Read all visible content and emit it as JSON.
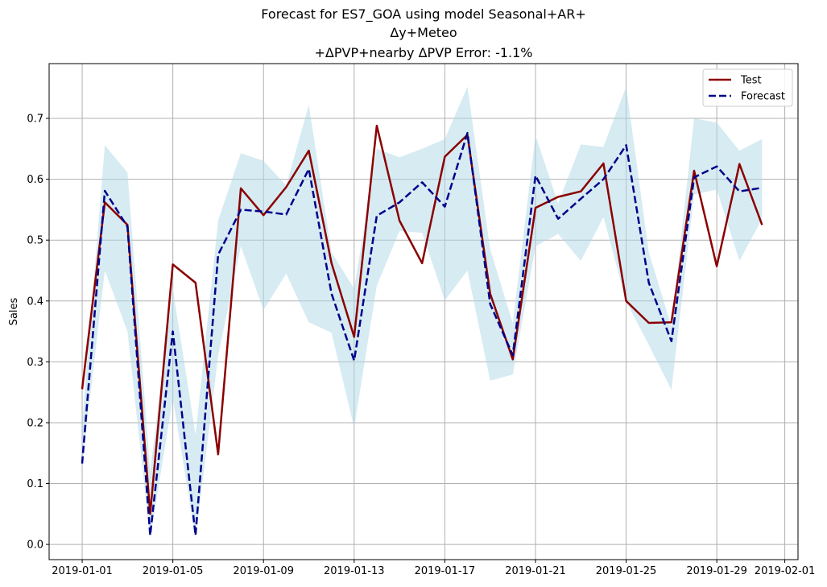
{
  "chart_data": {
    "type": "line",
    "title_lines": [
      "Forecast for ES7_GOA using model Seasonal+AR+",
      "Δy+Meteo",
      "+ΔPVP+nearby ΔPVP Error: -1.1%"
    ],
    "xlabel": "",
    "ylabel": "Sales",
    "x": [
      "2019-01-01",
      "2019-01-02",
      "2019-01-03",
      "2019-01-04",
      "2019-01-05",
      "2019-01-06",
      "2019-01-07",
      "2019-01-08",
      "2019-01-09",
      "2019-01-10",
      "2019-01-11",
      "2019-01-12",
      "2019-01-13",
      "2019-01-14",
      "2019-01-15",
      "2019-01-16",
      "2019-01-17",
      "2019-01-18",
      "2019-01-19",
      "2019-01-20",
      "2019-01-21",
      "2019-01-22",
      "2019-01-23",
      "2019-01-24",
      "2019-01-25",
      "2019-01-26",
      "2019-01-27",
      "2019-01-28",
      "2019-01-29",
      "2019-01-30",
      "2019-01-31"
    ],
    "x_ticks": [
      "2019-01-01",
      "2019-01-05",
      "2019-01-09",
      "2019-01-13",
      "2019-01-17",
      "2019-01-21",
      "2019-01-25",
      "2019-01-29",
      "2019-02-01"
    ],
    "y_ticks": [
      0.0,
      0.1,
      0.2,
      0.3,
      0.4,
      0.5,
      0.6,
      0.7
    ],
    "xlim": [
      "2018-12-30 13:00",
      "2019-02-01 14:00"
    ],
    "ylim": [
      -0.025,
      0.79
    ],
    "grid": true,
    "legend_position": "top-right",
    "series": [
      {
        "name": "Test",
        "color": "#8b0000",
        "style": "solid",
        "values": [
          0.255,
          0.562,
          0.525,
          0.05,
          0.46,
          0.43,
          0.148,
          0.585,
          0.541,
          0.587,
          0.647,
          0.462,
          0.341,
          0.688,
          0.532,
          0.462,
          0.637,
          0.673,
          0.412,
          0.304,
          0.553,
          0.571,
          0.58,
          0.626,
          0.4,
          0.364,
          0.365,
          0.614,
          0.457,
          0.625,
          0.525
        ]
      },
      {
        "name": "Forecast",
        "color": "#00008b",
        "style": "dashed",
        "values": [
          0.133,
          0.581,
          0.522,
          0.015,
          0.35,
          0.015,
          0.476,
          0.55,
          0.547,
          0.542,
          0.617,
          0.412,
          0.302,
          0.54,
          0.562,
          0.595,
          0.555,
          0.676,
          0.395,
          0.311,
          0.606,
          0.535,
          0.568,
          0.6,
          0.656,
          0.43,
          0.334,
          0.603,
          0.621,
          0.58,
          0.586
        ]
      }
    ],
    "band": {
      "color": "#add8e6",
      "lower": [
        0.13,
        0.45,
        0.35,
        0.01,
        0.24,
        0.01,
        0.31,
        0.49,
        0.385,
        0.445,
        0.365,
        0.348,
        0.192,
        0.425,
        0.515,
        0.512,
        0.401,
        0.45,
        0.269,
        0.279,
        0.49,
        0.51,
        0.466,
        0.538,
        0.399,
        0.328,
        0.254,
        0.575,
        0.583,
        0.466,
        0.535
      ],
      "upper": [
        0.2,
        0.656,
        0.611,
        0.12,
        0.42,
        0.18,
        0.532,
        0.643,
        0.63,
        0.59,
        0.722,
        0.48,
        0.42,
        0.65,
        0.636,
        0.65,
        0.666,
        0.752,
        0.485,
        0.363,
        0.672,
        0.56,
        0.657,
        0.653,
        0.752,
        0.48,
        0.358,
        0.7,
        0.693,
        0.647,
        0.666
      ]
    }
  }
}
